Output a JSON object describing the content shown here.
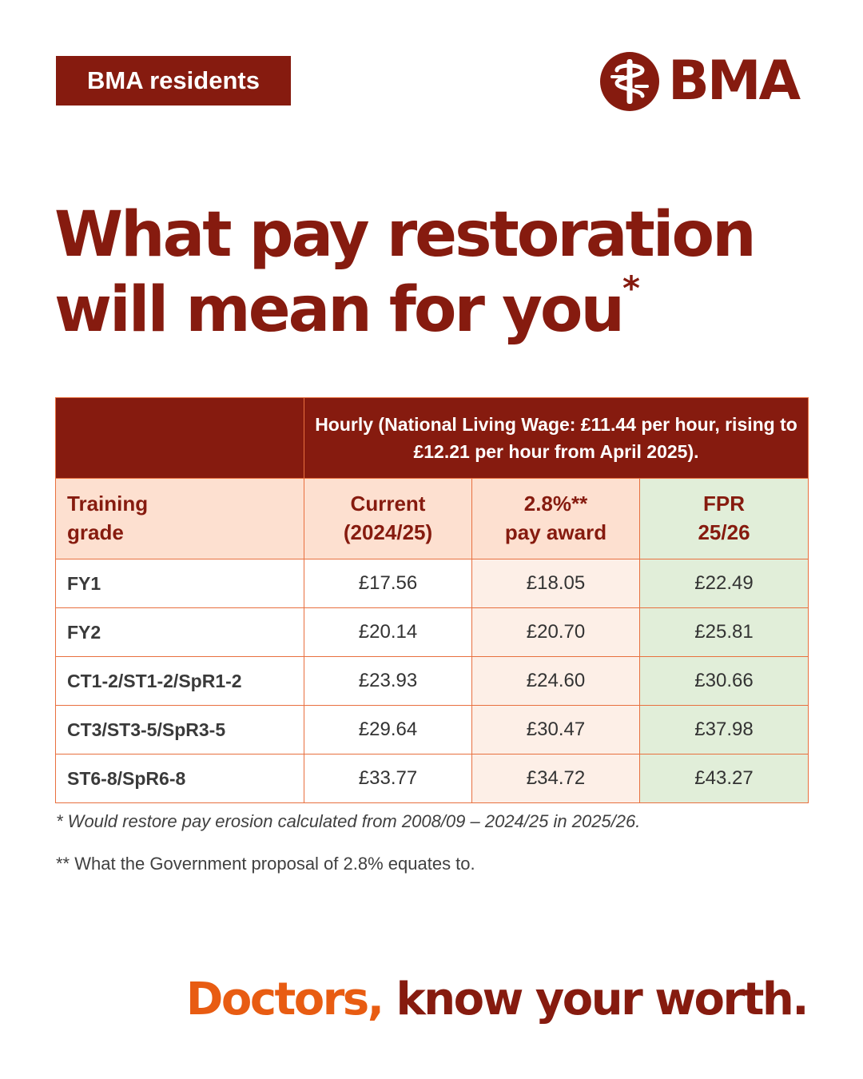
{
  "badge": "BMA residents",
  "logo": {
    "text": "BMA",
    "icon": "bma-emblem-icon"
  },
  "headline": {
    "line1": "What pay restoration",
    "line2": "will mean for you",
    "mark": "*"
  },
  "table": {
    "header_top": "Hourly (National Living Wage: £11.44 per hour, rising to £12.21 per hour from April 2025).",
    "col_grade": {
      "l1": "Training",
      "l2": "grade"
    },
    "col_current": {
      "l1": "Current",
      "l2": "(2024/25)"
    },
    "col_award": {
      "l1": "2.8%**",
      "l2": "pay award"
    },
    "col_fpr": {
      "l1": "FPR",
      "l2": "25/26"
    },
    "rows": [
      {
        "grade": "FY1",
        "current": "£17.56",
        "award": "£18.05",
        "fpr": "£22.49"
      },
      {
        "grade": "FY2",
        "current": "£20.14",
        "award": "£20.70",
        "fpr": "£25.81"
      },
      {
        "grade": "CT1-2/ST1-2/SpR1-2",
        "current": "£23.93",
        "award": "£24.60",
        "fpr": "£30.66"
      },
      {
        "grade": "CT3/ST3-5/SpR3-5",
        "current": "£29.64",
        "award": "£30.47",
        "fpr": "£37.98"
      },
      {
        "grade": "ST6-8/SpR6-8",
        "current": "£33.77",
        "award": "£34.72",
        "fpr": "£43.27"
      }
    ]
  },
  "notes": {
    "n1": "* Would restore pay erosion calculated from 2008/09 – 2024/25 in 2025/26.",
    "n2": "** What the Government proposal of 2.8% equates to."
  },
  "tagline": {
    "part1": "Doctors,",
    "part2": "know your worth."
  },
  "colors": {
    "brand": "#861b0f",
    "accent": "#e85c12",
    "border": "#e8703f",
    "header_tint": "#fde0d0",
    "fpr_tint": "#e1eed9"
  }
}
